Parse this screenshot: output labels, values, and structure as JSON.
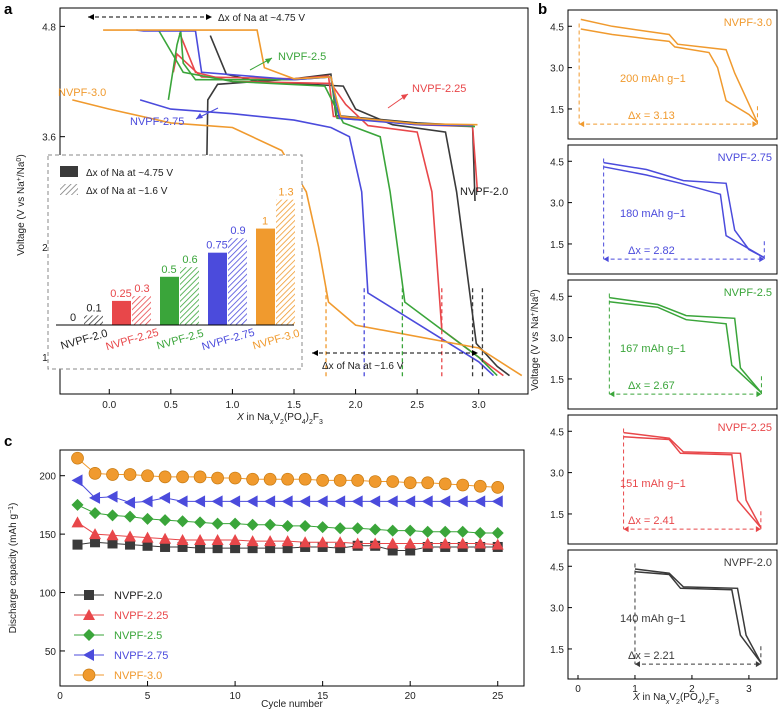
{
  "panels": {
    "a": "a",
    "b": "b",
    "c": "c"
  },
  "colors": {
    "NVPF-2.0": "#3a3a3a",
    "NVPF-2.25": "#e8474a",
    "NVPF-2.5": "#3aa53a",
    "NVPF-2.75": "#4b4bdc",
    "NVPF-3.0": "#f09a2e"
  },
  "chart_data": [
    {
      "id": "a",
      "type": "line",
      "xlabel": "X in NaxV2(PO4)2F3",
      "ylabel": "Voltage (V vs Na+/Na0)",
      "xlim": [
        -0.4,
        3.4
      ],
      "ylim": [
        0.8,
        5.0
      ],
      "xticks": [
        "0.0",
        "0.5",
        "1.0",
        "1.5",
        "2.0",
        "2.5",
        "3.0"
      ],
      "xtick_values": [
        0,
        0.5,
        1,
        1.5,
        2,
        2.5,
        3
      ],
      "yticks": [
        "1.2",
        "2.4",
        "3.6",
        "4.8"
      ],
      "ytick_values": [
        1.2,
        2.4,
        3.6,
        4.8
      ],
      "series": [
        {
          "name": "NVPF-2.0",
          "charge": [
            [
              0.78,
              2.3
            ],
            [
              0.8,
              4.0
            ],
            [
              0.88,
              4.17
            ],
            [
              1.5,
              4.23
            ],
            [
              1.8,
              4.28
            ],
            [
              1.84,
              3.83
            ],
            [
              2.5,
              3.75
            ],
            [
              2.95,
              3.72
            ],
            [
              2.97,
              2.9
            ]
          ],
          "discharge": [
            [
              3.25,
              1.0
            ],
            [
              3.15,
              1.1
            ],
            [
              2.98,
              1.35
            ],
            [
              2.82,
              3.0
            ],
            [
              2.73,
              3.65
            ],
            [
              2.3,
              3.73
            ],
            [
              2.0,
              3.9
            ],
            [
              1.9,
              4.15
            ],
            [
              1.2,
              4.2
            ],
            [
              0.95,
              4.28
            ],
            [
              0.82,
              4.7
            ]
          ]
        },
        {
          "name": "NVPF-2.25",
          "charge": [
            [
              0.52,
              4.3
            ],
            [
              0.55,
              4.5
            ],
            [
              0.75,
              4.25
            ],
            [
              1.5,
              4.23
            ],
            [
              1.78,
              4.26
            ],
            [
              1.82,
              3.82
            ],
            [
              2.5,
              3.73
            ],
            [
              2.95,
              3.71
            ],
            [
              2.99,
              3.0
            ]
          ],
          "discharge": [
            [
              3.2,
              1.0
            ],
            [
              3.0,
              1.2
            ],
            [
              2.7,
              1.5
            ],
            [
              2.62,
              3.0
            ],
            [
              2.5,
              3.65
            ],
            [
              2.1,
              3.72
            ],
            [
              1.92,
              3.95
            ],
            [
              1.8,
              4.18
            ],
            [
              1.0,
              4.2
            ],
            [
              0.7,
              4.3
            ],
            [
              0.57,
              4.73
            ]
          ]
        },
        {
          "name": "NVPF-2.5",
          "charge": [
            [
              0.48,
              4.0
            ],
            [
              0.55,
              4.6
            ],
            [
              0.58,
              4.75
            ],
            [
              0.6,
              4.4
            ],
            [
              0.7,
              4.22
            ],
            [
              1.5,
              4.22
            ],
            [
              1.8,
              4.25
            ],
            [
              1.85,
              3.8
            ],
            [
              2.5,
              3.74
            ],
            [
              2.97,
              3.71
            ]
          ],
          "discharge": [
            [
              3.15,
              1.0
            ],
            [
              3.0,
              1.2
            ],
            [
              2.4,
              1.8
            ],
            [
              2.34,
              2.4
            ],
            [
              2.28,
              3.0
            ],
            [
              2.2,
              3.6
            ],
            [
              1.9,
              3.75
            ],
            [
              1.75,
              4.15
            ],
            [
              1.0,
              4.2
            ],
            [
              0.6,
              4.3
            ],
            [
              0.4,
              4.76
            ]
          ]
        },
        {
          "name": "NVPF-2.75",
          "charge": [
            [
              0.22,
              4.76
            ],
            [
              0.28,
              4.75
            ],
            [
              0.7,
              4.75
            ],
            [
              0.75,
              4.3
            ],
            [
              1.5,
              4.22
            ],
            [
              1.8,
              4.25
            ],
            [
              1.87,
              3.8
            ],
            [
              2.5,
              3.73
            ],
            [
              2.95,
              3.72
            ]
          ],
          "discharge": [
            [
              3.12,
              1.0
            ],
            [
              3.0,
              1.15
            ],
            [
              2.1,
              1.9
            ],
            [
              2.05,
              3.0
            ],
            [
              1.95,
              3.6
            ],
            [
              1.8,
              3.7
            ],
            [
              1.5,
              3.78
            ],
            [
              1.0,
              3.85
            ],
            [
              0.5,
              3.9
            ],
            [
              0.25,
              4.0
            ]
          ]
        },
        {
          "name": "NVPF-3.0",
          "charge": [
            [
              -0.05,
              4.76
            ],
            [
              0.6,
              4.76
            ],
            [
              1.2,
              4.76
            ],
            [
              1.26,
              4.35
            ],
            [
              1.5,
              4.23
            ],
            [
              1.8,
              4.25
            ],
            [
              1.88,
              3.82
            ],
            [
              2.5,
              3.74
            ],
            [
              2.99,
              3.73
            ]
          ],
          "discharge": [
            [
              3.35,
              1.0
            ],
            [
              3.0,
              1.3
            ],
            [
              2.0,
              1.55
            ],
            [
              1.78,
              1.8
            ],
            [
              1.7,
              2.4
            ],
            [
              1.6,
              3.0
            ],
            [
              1.4,
              3.45
            ],
            [
              1.0,
              3.7
            ],
            [
              0.5,
              3.75
            ],
            [
              0.0,
              3.9
            ],
            [
              -0.3,
              4.0
            ]
          ]
        }
      ],
      "annotations": [
        "Δx of Na at ~4.75 V",
        "Δx of Na at ~1.6 V",
        "NVPF-2.5",
        "NVPF-2.25",
        "NVPF-3.0",
        "NVPF-2.75",
        "NVPF-2.0"
      ]
    },
    {
      "id": "a-inset",
      "type": "bar",
      "legend": [
        "Δx of Na at ~4.75 V",
        "Δx of Na at ~1.6 V"
      ],
      "categories": [
        "NVPF-2.0",
        "NVPF-2.25",
        "NVPF-2.5",
        "NVPF-2.75",
        "NVPF-3.0"
      ],
      "series": [
        {
          "name": "Δx of Na at ~4.75 V",
          "values": [
            0,
            0.25,
            0.5,
            0.75,
            1
          ]
        },
        {
          "name": "Δx of Na at ~1.6 V",
          "values": [
            0.1,
            0.3,
            0.6,
            0.9,
            1.3
          ]
        }
      ],
      "labels_a": [
        "0",
        "0.25",
        "0.5",
        "0.75",
        "1"
      ],
      "labels_b": [
        "0.1",
        "0.3",
        "0.6",
        "0.9",
        "1.3"
      ],
      "ylim": [
        0,
        1.4
      ]
    },
    {
      "id": "b",
      "type": "line",
      "xlabel": "X in NaxV2(PO4)2F3",
      "ylabel": "Voltage (V vs Na+/Na0)",
      "xticks": [
        "0",
        "1",
        "2",
        "3"
      ],
      "yticks": [
        "1.5",
        "3.0",
        "4.5"
      ],
      "subpanels": [
        {
          "name": "NVPF-3.0",
          "capacity": "200 mAh g−1",
          "dx": "Δx = 3.13"
        },
        {
          "name": "NVPF-2.75",
          "capacity": "180 mAh g−1",
          "dx": "Δx = 2.82"
        },
        {
          "name": "NVPF-2.5",
          "capacity": "167 mAh g−1",
          "dx": "Δx = 2.67"
        },
        {
          "name": "NVPF-2.25",
          "capacity": "151 mAh g−1",
          "dx": "Δx = 2.41"
        },
        {
          "name": "NVPF-2.0",
          "capacity": "140 mAh g−1",
          "dx": "Δx = 2.21"
        }
      ]
    },
    {
      "id": "c",
      "type": "scatter",
      "xlabel": "Cycle number",
      "ylabel": "Discharge capacity (mAh g−1)",
      "xlim": [
        0,
        26.5
      ],
      "ylim": [
        20,
        222
      ],
      "xticks": [
        "0",
        "5",
        "10",
        "15",
        "20",
        "25"
      ],
      "yticks": [
        "50",
        "100",
        "150",
        "200"
      ],
      "x": [
        1,
        2,
        3,
        4,
        5,
        6,
        7,
        8,
        9,
        10,
        11,
        12,
        13,
        14,
        15,
        16,
        17,
        18,
        19,
        20,
        21,
        22,
        23,
        24,
        25
      ],
      "series": [
        {
          "name": "NVPF-2.0",
          "values": [
            141,
            143,
            142,
            141,
            140,
            139,
            139,
            138,
            138,
            138,
            138,
            138,
            138,
            139,
            139,
            138,
            140,
            140,
            136,
            136,
            139,
            139,
            139,
            139,
            139
          ]
        },
        {
          "name": "NVPF-2.25",
          "values": [
            160,
            150,
            149,
            148,
            147,
            146,
            145,
            145,
            145,
            145,
            144,
            144,
            144,
            143,
            143,
            143,
            142,
            142,
            142,
            142,
            142,
            142,
            142,
            142,
            141
          ]
        },
        {
          "name": "NVPF-2.5",
          "values": [
            175,
            168,
            166,
            165,
            163,
            162,
            161,
            160,
            159,
            159,
            158,
            158,
            157,
            157,
            156,
            155,
            155,
            154,
            153,
            153,
            152,
            152,
            152,
            151,
            151
          ]
        },
        {
          "name": "NVPF-2.75",
          "values": [
            196,
            181,
            182,
            177,
            178,
            181,
            178,
            178,
            178,
            178,
            178,
            178,
            178,
            178,
            178,
            178,
            178,
            178,
            178,
            178,
            178,
            178,
            178,
            178,
            178
          ]
        },
        {
          "name": "NVPF-3.0",
          "values": [
            215,
            202,
            201,
            201,
            200,
            199,
            199,
            199,
            198,
            198,
            197,
            197,
            197,
            197,
            196,
            196,
            196,
            195,
            195,
            194,
            194,
            193,
            192,
            191,
            190
          ]
        }
      ],
      "legend": [
        "NVPF-2.0",
        "NVPF-2.25",
        "NVPF-2.5",
        "NVPF-2.75",
        "NVPF-3.0"
      ]
    }
  ]
}
